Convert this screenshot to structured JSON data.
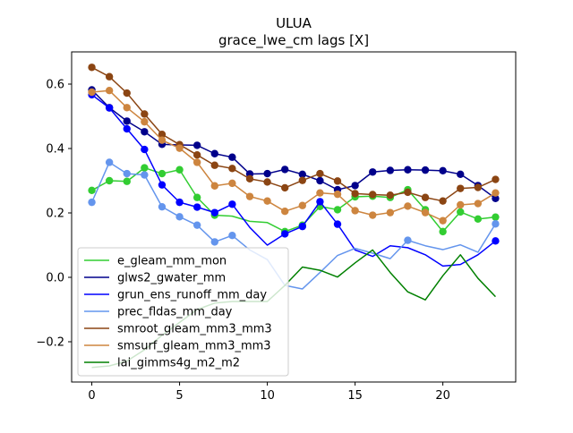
{
  "chart_data": {
    "type": "line",
    "title": "ULUA",
    "subtitle": "grace_lwe_cm lags [X]",
    "xlabel": "",
    "ylabel": "",
    "xlim": [
      -1.15,
      24.15
    ],
    "ylim": [
      -0.325,
      0.7
    ],
    "xticks": [
      0,
      5,
      10,
      15,
      20
    ],
    "xtick_labels": [
      "0",
      "5",
      "10",
      "15",
      "20"
    ],
    "yticks": [
      -0.2,
      0.0,
      0.2,
      0.4,
      0.6
    ],
    "ytick_labels": [
      "−0.2",
      "0.0",
      "0.2",
      "0.4",
      "0.6"
    ],
    "grid": false,
    "legend_position": "lower-left",
    "x": [
      0,
      1,
      2,
      3,
      4,
      5,
      6,
      7,
      8,
      9,
      10,
      11,
      12,
      13,
      14,
      15,
      16,
      17,
      18,
      19,
      20,
      21,
      22,
      23
    ],
    "series": [
      {
        "name": "e_gleam_mm_mon",
        "color": "#32cd32",
        "markers": true,
        "marker_mask": [
          1,
          1,
          1,
          1,
          1,
          1,
          1,
          1,
          0,
          0,
          0,
          1,
          1,
          1,
          1,
          1,
          1,
          1,
          1,
          1,
          1,
          1,
          1,
          1
        ],
        "values": [
          0.27,
          0.3,
          0.298,
          0.34,
          0.322,
          0.334,
          0.248,
          0.193,
          0.19,
          0.174,
          0.17,
          0.142,
          0.162,
          0.22,
          0.21,
          0.25,
          0.252,
          0.248,
          0.272,
          0.21,
          0.142,
          0.203,
          0.181,
          0.187
        ]
      },
      {
        "name": "glws2_gwater_mm",
        "color": "#00008b",
        "markers": true,
        "marker_mask": [
          1,
          1,
          1,
          1,
          1,
          1,
          1,
          1,
          1,
          1,
          1,
          1,
          1,
          1,
          1,
          1,
          1,
          1,
          1,
          1,
          1,
          1,
          1,
          1
        ],
        "values": [
          0.582,
          0.527,
          0.485,
          0.452,
          0.413,
          0.411,
          0.41,
          0.384,
          0.373,
          0.321,
          0.322,
          0.335,
          0.32,
          0.3,
          0.272,
          0.285,
          0.327,
          0.332,
          0.334,
          0.333,
          0.331,
          0.32,
          0.285,
          0.245
        ]
      },
      {
        "name": "grun_ens_runoff_mm_day",
        "color": "#0000ff",
        "markers": true,
        "marker_mask": [
          1,
          1,
          1,
          1,
          1,
          1,
          1,
          1,
          1,
          0,
          0,
          1,
          1,
          1,
          1,
          0,
          0,
          0,
          0,
          0,
          0,
          0,
          0,
          1
        ],
        "values": [
          0.567,
          0.526,
          0.461,
          0.397,
          0.287,
          0.233,
          0.218,
          0.201,
          0.227,
          0.155,
          0.1,
          0.135,
          0.158,
          0.235,
          0.165,
          0.085,
          0.065,
          0.098,
          0.092,
          0.07,
          0.035,
          0.04,
          0.07,
          0.113
        ]
      },
      {
        "name": "prec_fldas_mm_day",
        "color": "#6495ed",
        "markers": true,
        "marker_mask": [
          1,
          1,
          1,
          1,
          1,
          1,
          1,
          1,
          1,
          0,
          0,
          0,
          0,
          0,
          0,
          0,
          0,
          0,
          1,
          0,
          0,
          0,
          0,
          1
        ],
        "values": [
          0.233,
          0.357,
          0.322,
          0.318,
          0.219,
          0.188,
          0.162,
          0.11,
          0.13,
          0.085,
          0.055,
          -0.025,
          -0.036,
          0.015,
          0.068,
          0.09,
          0.075,
          0.058,
          0.115,
          0.098,
          0.086,
          0.101,
          0.078,
          0.166
        ]
      },
      {
        "name": "smroot_gleam_mm3_mm3",
        "color": "#8b4513",
        "markers": true,
        "marker_mask": [
          1,
          1,
          1,
          1,
          1,
          1,
          1,
          1,
          1,
          1,
          1,
          1,
          1,
          1,
          1,
          1,
          1,
          1,
          1,
          1,
          1,
          1,
          1,
          1
        ],
        "values": [
          0.652,
          0.623,
          0.572,
          0.507,
          0.444,
          0.412,
          0.38,
          0.348,
          0.338,
          0.306,
          0.296,
          0.278,
          0.301,
          0.322,
          0.299,
          0.26,
          0.257,
          0.255,
          0.264,
          0.248,
          0.237,
          0.276,
          0.279,
          0.304
        ]
      },
      {
        "name": "smsurf_gleam_mm3_mm3",
        "color": "#cd853f",
        "markers": true,
        "marker_mask": [
          1,
          1,
          1,
          1,
          1,
          1,
          1,
          1,
          1,
          1,
          1,
          1,
          1,
          1,
          1,
          1,
          1,
          1,
          1,
          1,
          1,
          1,
          1,
          1
        ],
        "values": [
          0.575,
          0.58,
          0.527,
          0.483,
          0.426,
          0.401,
          0.357,
          0.284,
          0.292,
          0.251,
          0.237,
          0.205,
          0.223,
          0.262,
          0.258,
          0.207,
          0.193,
          0.201,
          0.221,
          0.201,
          0.176,
          0.225,
          0.229,
          0.262
        ]
      },
      {
        "name": "lai_gimms4g_m2_m2",
        "color": "#008000",
        "markers": false,
        "values": [
          -0.28,
          -0.275,
          -0.26,
          -0.225,
          -0.18,
          -0.14,
          -0.1,
          -0.08,
          -0.075,
          -0.075,
          -0.075,
          -0.025,
          0.032,
          0.022,
          0.001,
          0.045,
          0.085,
          0.015,
          -0.045,
          -0.07,
          0.005,
          0.07,
          -0.003,
          -0.06
        ]
      }
    ]
  }
}
